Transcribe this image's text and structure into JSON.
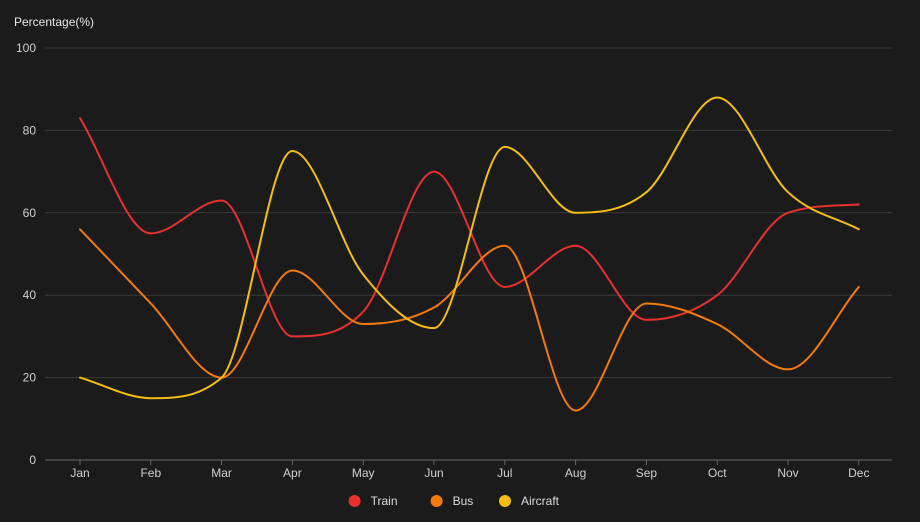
{
  "chart_data": {
    "type": "line",
    "smooth": true,
    "title": "",
    "xlabel": "",
    "ylabel": "Percentage(%)",
    "categories": [
      "Jan",
      "Feb",
      "Mar",
      "Apr",
      "May",
      "Jun",
      "Jul",
      "Aug",
      "Sep",
      "Oct",
      "Nov",
      "Dec"
    ],
    "ylim": [
      0,
      100
    ],
    "yticks": [
      0,
      20,
      40,
      60,
      80,
      100
    ],
    "grid": true,
    "legend_position": "bottom-center",
    "series": [
      {
        "name": "Train",
        "color": "#e8302f",
        "values": [
          83,
          55,
          63,
          30,
          36,
          70,
          42,
          52,
          34,
          40,
          60,
          62
        ]
      },
      {
        "name": "Bus",
        "color": "#f27a0c",
        "values": [
          56,
          38,
          20,
          46,
          33,
          37,
          52,
          12,
          38,
          33,
          22,
          42
        ]
      },
      {
        "name": "Aircraft",
        "color": "#f5bd14",
        "values": [
          20,
          15,
          20,
          75,
          45,
          32,
          76,
          60,
          65,
          88,
          65,
          56
        ]
      }
    ]
  },
  "colors": {
    "background": "#1b1b1b",
    "grid": "#3a3a3a",
    "axis": "#6a6a6a"
  }
}
